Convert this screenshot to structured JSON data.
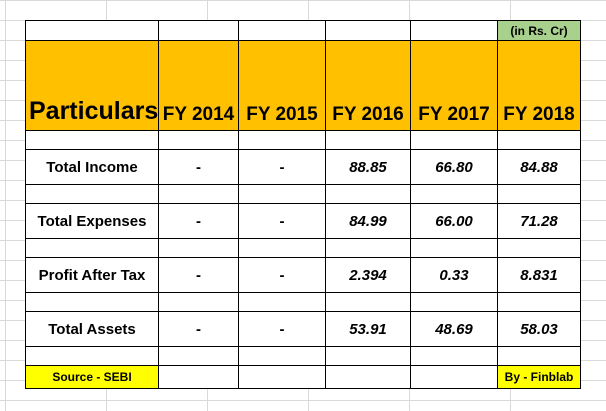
{
  "unit_note": "(in Rs. Cr)",
  "header": {
    "particulars": "Particulars",
    "years": [
      "FY 2014",
      "FY 2015",
      "FY 2016",
      "FY 2017",
      "FY 2018"
    ]
  },
  "rows": [
    {
      "label": "Total Income",
      "values": [
        "-",
        "-",
        "88.85",
        "66.80",
        "84.88"
      ]
    },
    {
      "label": "Total Expenses",
      "values": [
        "-",
        "-",
        "84.99",
        "66.00",
        "71.28"
      ]
    },
    {
      "label": "Profit After Tax",
      "values": [
        "-",
        "-",
        "2.394",
        "0.33",
        "8.831"
      ]
    },
    {
      "label": "Total Assets",
      "values": [
        "-",
        "-",
        "53.91",
        "48.69",
        "58.03"
      ]
    }
  ],
  "footer": {
    "source": "Source - SEBI",
    "credit": "By - Finblab"
  },
  "colors": {
    "header_fill": "#ffc000",
    "unit_fill": "#a9d18e",
    "footer_fill": "#ffff00"
  }
}
